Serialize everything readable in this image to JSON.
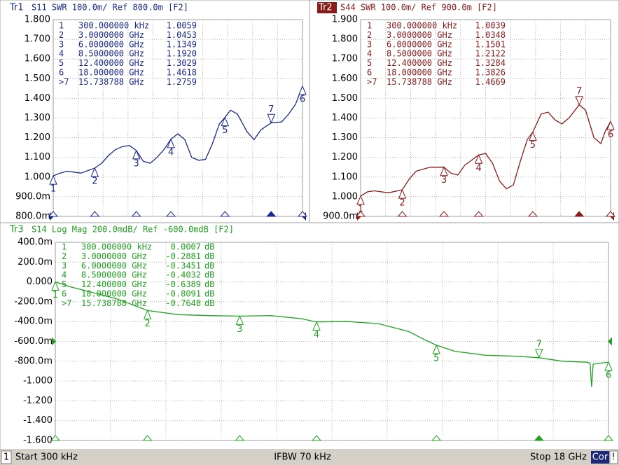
{
  "chart_data": [
    {
      "type": "line",
      "trace": "Tr1",
      "title": "S11  SWR 100.0m/ Ref 800.0m [F2]",
      "active": false,
      "ref": 0.8,
      "xlim": [
        0.0003,
        18
      ],
      "ylim": [
        0.8,
        1.8
      ],
      "yticks": [
        {
          "value": 0.8,
          "label": "800.0m"
        },
        {
          "value": 0.9,
          "label": "900.0m"
        },
        {
          "value": 1.0,
          "label": "1.000"
        },
        {
          "value": 1.1,
          "label": "1.100"
        },
        {
          "value": 1.2,
          "label": "1.200"
        },
        {
          "value": 1.3,
          "label": "1.300"
        },
        {
          "value": 1.4,
          "label": "1.400"
        },
        {
          "value": 1.5,
          "label": "1.500"
        },
        {
          "value": 1.6,
          "label": "1.600"
        },
        {
          "value": 1.7,
          "label": "1.700"
        },
        {
          "value": 1.8,
          "label": "1.800"
        }
      ],
      "x": [
        0.0003,
        0.5,
        1,
        1.5,
        2,
        3,
        3.5,
        4,
        4.5,
        5,
        5.5,
        6,
        6.5,
        7,
        7.5,
        8,
        8.5,
        9,
        9.5,
        10,
        10.5,
        11,
        11.5,
        12,
        12.4,
        12.8,
        13.3,
        14,
        14.5,
        15,
        15.738788,
        16.5,
        17,
        17.5,
        18
      ],
      "series": [
        {
          "color": "#1a2a8c",
          "values": [
            1.0059,
            1.02,
            1.03,
            1.025,
            1.02,
            1.0453,
            1.07,
            1.11,
            1.14,
            1.155,
            1.16,
            1.1349,
            1.08,
            1.07,
            1.1,
            1.14,
            1.192,
            1.22,
            1.19,
            1.1,
            1.085,
            1.09,
            1.17,
            1.27,
            1.3029,
            1.34,
            1.32,
            1.23,
            1.19,
            1.24,
            1.2759,
            1.28,
            1.32,
            1.37,
            1.4618
          ]
        }
      ],
      "markers": {
        "table_labels": [
          "1",
          "2",
          "3",
          "4",
          "5",
          "6",
          ">7"
        ],
        "names": [
          "1",
          "2",
          "3",
          "4",
          "5",
          "6",
          "7"
        ],
        "x": [
          0.0003,
          3,
          6,
          8.5,
          12.4,
          18,
          15.738788
        ],
        "x_labels": [
          "300.000000 kHz",
          "3.0000000 GHz",
          "6.0000000 GHz",
          "8.5000000 GHz",
          "12.400000 GHz",
          "18.000000 GHz",
          "15.738788 GHz"
        ],
        "values": [
          1.0059,
          1.0453,
          1.1349,
          1.192,
          1.3029,
          1.4618,
          1.2759
        ],
        "value_labels": [
          "1.0059",
          "1.0453",
          "1.1349",
          "1.1920",
          "1.3029",
          "1.4618",
          "1.2759"
        ]
      }
    },
    {
      "type": "line",
      "trace": "Tr2",
      "title": "S44  SWR 100.0m/ Ref 900.0m [F2]",
      "active": true,
      "ref": 0.9,
      "xlim": [
        0.0003,
        18
      ],
      "ylim": [
        0.9,
        1.9
      ],
      "yticks": [
        {
          "value": 0.9,
          "label": "900.0m"
        },
        {
          "value": 1.0,
          "label": "1.000"
        },
        {
          "value": 1.1,
          "label": "1.100"
        },
        {
          "value": 1.2,
          "label": "1.200"
        },
        {
          "value": 1.3,
          "label": "1.300"
        },
        {
          "value": 1.4,
          "label": "1.400"
        },
        {
          "value": 1.5,
          "label": "1.500"
        },
        {
          "value": 1.6,
          "label": "1.600"
        },
        {
          "value": 1.7,
          "label": "1.700"
        },
        {
          "value": 1.8,
          "label": "1.800"
        },
        {
          "value": 1.9,
          "label": "1.900"
        }
      ],
      "x": [
        0.0003,
        0.5,
        1,
        2,
        3,
        3.5,
        4,
        5,
        6,
        6.5,
        7,
        7.5,
        8.5,
        9,
        9.5,
        10,
        10.5,
        11,
        11.5,
        12,
        12.4,
        13,
        13.5,
        14,
        14.5,
        15,
        15.738788,
        16.2,
        16.8,
        17.3,
        17.6,
        18
      ],
      "series": [
        {
          "color": "#8b1a1a",
          "values": [
            1.0039,
            1.025,
            1.03,
            1.02,
            1.0348,
            1.09,
            1.13,
            1.15,
            1.1501,
            1.12,
            1.11,
            1.16,
            1.2122,
            1.22,
            1.17,
            1.08,
            1.04,
            1.06,
            1.18,
            1.29,
            1.3284,
            1.42,
            1.43,
            1.39,
            1.37,
            1.4,
            1.4669,
            1.44,
            1.3,
            1.27,
            1.33,
            1.3826
          ]
        }
      ],
      "markers": {
        "table_labels": [
          "1",
          "2",
          "3",
          "4",
          "5",
          "6",
          ">7"
        ],
        "names": [
          "1",
          "2",
          "3",
          "4",
          "5",
          "6",
          "7"
        ],
        "x": [
          0.0003,
          3,
          6,
          8.5,
          12.4,
          18,
          15.738788
        ],
        "x_labels": [
          "300.000000 kHz",
          "3.0000000 GHz",
          "6.0000000 GHz",
          "8.5000000 GHz",
          "12.400000 GHz",
          "18.000000 GHz",
          "15.738788 GHz"
        ],
        "values": [
          1.0039,
          1.0348,
          1.1501,
          1.2122,
          1.3284,
          1.3826,
          1.4669
        ],
        "value_labels": [
          "1.0039",
          "1.0348",
          "1.1501",
          "1.2122",
          "1.3284",
          "1.3826",
          "1.4669"
        ]
      }
    },
    {
      "type": "line",
      "trace": "Tr3",
      "title": "S14  Log Mag 200.0mdB/ Ref -600.0mdB [F2]",
      "active": false,
      "ref": -0.6,
      "xlim": [
        0.0003,
        18
      ],
      "ylim": [
        -1.6,
        0.4
      ],
      "yticks": [
        {
          "value": -1.6,
          "label": "-1.600"
        },
        {
          "value": -1.4,
          "label": "-1.400"
        },
        {
          "value": -1.2,
          "label": "-1.200"
        },
        {
          "value": -1.0,
          "label": "-1.000"
        },
        {
          "value": -0.8,
          "label": "-800.0m"
        },
        {
          "value": -0.6,
          "label": "-600.0m"
        },
        {
          "value": -0.4,
          "label": "-400.0m"
        },
        {
          "value": -0.2,
          "label": "-200.0m"
        },
        {
          "value": 0,
          "label": "0.000"
        },
        {
          "value": 0.2,
          "label": "200.0m"
        },
        {
          "value": 0.4,
          "label": "400.0m"
        }
      ],
      "x": [
        0.0003,
        0.5,
        1,
        2,
        3,
        4,
        5,
        6,
        7,
        8,
        8.5,
        9.5,
        10.5,
        11.5,
        12,
        12.4,
        13,
        14,
        15,
        15.738788,
        16.5,
        17.3,
        17.4,
        17.45,
        17.5,
        18
      ],
      "series": [
        {
          "color": "#22a022",
          "values": [
            0.0007,
            -0.05,
            -0.09,
            -0.17,
            -0.2881,
            -0.33,
            -0.34,
            -0.3451,
            -0.34,
            -0.37,
            -0.4032,
            -0.4,
            -0.42,
            -0.5,
            -0.58,
            -0.6389,
            -0.7,
            -0.74,
            -0.75,
            -0.7648,
            -0.8,
            -0.81,
            -0.82,
            -1.06,
            -0.83,
            -0.8091
          ]
        }
      ],
      "markers": {
        "table_labels": [
          "1",
          "2",
          "3",
          "4",
          "5",
          "6",
          ">7"
        ],
        "names": [
          "1",
          "2",
          "3",
          "4",
          "5",
          "6",
          "7"
        ],
        "x": [
          0.0003,
          3,
          6,
          8.5,
          12.4,
          18,
          15.738788
        ],
        "x_labels": [
          "300.000000 kHz",
          "3.0000000 GHz",
          "6.0000000 GHz",
          "8.5000000 GHz",
          "12.400000 GHz",
          "18.000000 GHz",
          "15.738788 GHz"
        ],
        "values": [
          0.0007,
          -0.2881,
          -0.3451,
          -0.4032,
          -0.6389,
          -0.8091,
          -0.7648
        ],
        "value_unit": "dB"
      }
    }
  ],
  "status_bar": {
    "channel": "1",
    "start": "Start 300 kHz",
    "ifbw": "IFBW 70 kHz",
    "stop": "Stop 18 GHz",
    "cor": "Cor",
    "warn": "!"
  }
}
